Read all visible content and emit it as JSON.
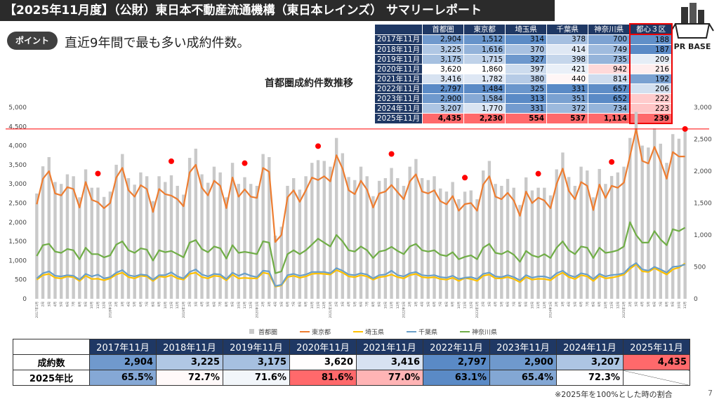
{
  "header": {
    "title": "【2025年11月度】（公財）東日本不動産流通機構（東日本レインズ） サマリーレポート",
    "logo": "PR BASE",
    "point_label": "ポイント",
    "point_text": "直近9年間で最も多い成約件数。"
  },
  "summary_table": {
    "columns": [
      "首都圏",
      "東京都",
      "埼玉県",
      "千葉県",
      "神奈川県",
      "都心３区"
    ],
    "rows": [
      {
        "label": "2017年11月",
        "cells": [
          "2,904",
          "1,512",
          "314",
          "378",
          "700",
          "188"
        ]
      },
      {
        "label": "2018年11月",
        "cells": [
          "3,225",
          "1,616",
          "370",
          "414",
          "749",
          "187"
        ]
      },
      {
        "label": "2019年11月",
        "cells": [
          "3,175",
          "1,715",
          "327",
          "398",
          "735",
          "209"
        ]
      },
      {
        "label": "2020年11月",
        "cells": [
          "3,620",
          "1,860",
          "397",
          "421",
          "942",
          "216"
        ]
      },
      {
        "label": "2021年11月",
        "cells": [
          "3,416",
          "1,782",
          "380",
          "440",
          "814",
          "192"
        ]
      },
      {
        "label": "2022年11月",
        "cells": [
          "2,797",
          "1,484",
          "325",
          "331",
          "657",
          "206"
        ]
      },
      {
        "label": "2023年11月",
        "cells": [
          "2,900",
          "1,584",
          "313",
          "351",
          "652",
          "222"
        ]
      },
      {
        "label": "2024年11月",
        "cells": [
          "3,207",
          "1,770",
          "331",
          "372",
          "734",
          "223"
        ]
      },
      {
        "label": "2025年11月",
        "cells": [
          "4,435",
          "2,230",
          "554",
          "537",
          "1,114",
          "239"
        ]
      }
    ]
  },
  "chart_data": {
    "type": "combo",
    "title": "首都圏成約件数推移",
    "legend": "bottom",
    "highlight_color": "#ff0000",
    "grid": false,
    "categories": [
      "2017年1月",
      "2月",
      "3月",
      "4月",
      "5月",
      "6月",
      "7月",
      "8月",
      "9月",
      "10月",
      "11月",
      "12月",
      "2018年1月",
      "2月",
      "3月",
      "4月",
      "5月",
      "6月",
      "7月",
      "8月",
      "9月",
      "10月",
      "11月",
      "12月",
      "2019年1月",
      "2月",
      "3月",
      "4月",
      "5月",
      "6月",
      "7月",
      "8月",
      "9月",
      "10月",
      "11月",
      "12月",
      "2020年1月",
      "2月",
      "3月",
      "4月",
      "5月",
      "6月",
      "7月",
      "8月",
      "9月",
      "10月",
      "11月",
      "12月",
      "2021年1月",
      "2月",
      "3月",
      "4月",
      "5月",
      "6月",
      "7月",
      "8月",
      "9月",
      "10月",
      "11月",
      "12月",
      "2022年1月",
      "2月",
      "3月",
      "4月",
      "5月",
      "6月",
      "7月",
      "8月",
      "9月",
      "10月",
      "11月",
      "12月",
      "2023年1月",
      "2月",
      "3月",
      "4月",
      "5月",
      "6月",
      "7月",
      "8月",
      "9月",
      "10月",
      "11月",
      "12月",
      "2024年1月",
      "2月",
      "3月",
      "4月",
      "5月",
      "6月",
      "7月",
      "8月",
      "9月",
      "10月",
      "11月",
      "12月",
      "2025年1月",
      "2月",
      "3月",
      "4月",
      "5月",
      "6月",
      "7月",
      "8月",
      "9月",
      "10月",
      "11月"
    ],
    "series": [
      {
        "name": "首都圏",
        "type": "bar",
        "color": "#c9c9c9",
        "values": [
          2750,
          3460,
          3700,
          3050,
          3000,
          3250,
          3200,
          2650,
          3380,
          2900,
          2904,
          2660,
          2800,
          3500,
          3780,
          3150,
          2980,
          3300,
          3200,
          2550,
          3200,
          3050,
          3225,
          2950,
          2720,
          3680,
          3920,
          3250,
          3030,
          3450,
          3300,
          2650,
          3550,
          3000,
          3175,
          3000,
          2950,
          3780,
          3700,
          1650,
          1880,
          2950,
          3150,
          2850,
          3200,
          3550,
          3620,
          3600,
          3450,
          4200,
          3800,
          3180,
          3100,
          3450,
          3200,
          2680,
          3080,
          3150,
          3416,
          3150,
          2950,
          3450,
          3650,
          3150,
          3100,
          3200,
          2880,
          2800,
          3050,
          2600,
          2797,
          2830,
          2600,
          3350,
          3600,
          3000,
          2950,
          3130,
          2900,
          2450,
          3170,
          2830,
          2900,
          2900,
          2700,
          3380,
          3820,
          3180,
          2950,
          3450,
          3350,
          2650,
          3390,
          3000,
          3207,
          3300,
          3450,
          4200,
          4880,
          4000,
          3950,
          4450,
          4050,
          3550,
          4300,
          4180,
          4435
        ]
      },
      {
        "name": "東京都",
        "type": "line",
        "axis": "y2",
        "color": "#ed7d31",
        "values": [
          1480,
          1880,
          2000,
          1650,
          1620,
          1750,
          1720,
          1430,
          1830,
          1550,
          1512,
          1420,
          1500,
          1900,
          2050,
          1700,
          1600,
          1780,
          1720,
          1360,
          1720,
          1640,
          1616,
          1560,
          1450,
          1980,
          2100,
          1740,
          1620,
          1850,
          1770,
          1420,
          1900,
          1600,
          1715,
          1600,
          1580,
          2050,
          1990,
          890,
          1000,
          1590,
          1700,
          1520,
          1700,
          1900,
          1860,
          1920,
          1840,
          2250,
          2040,
          1700,
          1640,
          1850,
          1710,
          1430,
          1650,
          1680,
          1782,
          1670,
          1560,
          1840,
          1950,
          1680,
          1650,
          1700,
          1530,
          1480,
          1610,
          1380,
          1484,
          1500,
          1380,
          1790,
          1920,
          1600,
          1560,
          1660,
          1540,
          1300,
          1680,
          1500,
          1584,
          1540,
          1420,
          1800,
          2040,
          1690,
          1560,
          1830,
          1770,
          1390,
          1790,
          1580,
          1770,
          1740,
          1820,
          2240,
          2660,
          2160,
          2120,
          2380,
          2150,
          1880,
          2300,
          2230,
          2230
        ]
      },
      {
        "name": "埼玉県",
        "type": "line",
        "axis": "y2",
        "color": "#ffc000",
        "values": [
          300,
          370,
          390,
          330,
          320,
          350,
          340,
          280,
          360,
          310,
          314,
          290,
          320,
          380,
          410,
          340,
          320,
          360,
          350,
          280,
          350,
          340,
          370,
          320,
          300,
          390,
          410,
          340,
          320,
          360,
          350,
          290,
          380,
          320,
          327,
          320,
          320,
          410,
          390,
          190,
          210,
          340,
          360,
          330,
          350,
          390,
          397,
          390,
          380,
          450,
          410,
          350,
          340,
          370,
          350,
          300,
          340,
          350,
          380,
          340,
          320,
          370,
          390,
          340,
          330,
          340,
          310,
          300,
          330,
          280,
          325,
          310,
          280,
          360,
          380,
          320,
          320,
          340,
          310,
          260,
          340,
          300,
          313,
          310,
          290,
          360,
          410,
          340,
          310,
          370,
          350,
          280,
          360,
          320,
          331,
          350,
          380,
          470,
          540,
          430,
          420,
          480,
          430,
          380,
          460,
          490,
          554
        ]
      },
      {
        "name": "千葉県",
        "type": "line",
        "axis": "y2",
        "color": "#6a9fc8",
        "values": [
          320,
          400,
          430,
          360,
          350,
          370,
          360,
          300,
          390,
          350,
          378,
          320,
          340,
          410,
          450,
          370,
          350,
          380,
          370,
          300,
          370,
          370,
          414,
          350,
          320,
          420,
          460,
          380,
          350,
          390,
          380,
          310,
          410,
          360,
          398,
          360,
          340,
          440,
          430,
          200,
          220,
          370,
          390,
          360,
          380,
          420,
          421,
          420,
          400,
          480,
          440,
          380,
          370,
          400,
          380,
          320,
          370,
          380,
          440,
          370,
          350,
          400,
          420,
          370,
          360,
          370,
          340,
          330,
          360,
          310,
          331,
          340,
          310,
          390,
          410,
          350,
          340,
          370,
          340,
          290,
          370,
          330,
          351,
          350,
          320,
          400,
          440,
          370,
          340,
          400,
          380,
          310,
          390,
          350,
          372,
          380,
          400,
          500,
          560,
          460,
          440,
          500,
          460,
          410,
          500,
          510,
          537
        ]
      },
      {
        "name": "神奈川県",
        "type": "line",
        "axis": "y2",
        "color": "#70ad47",
        "values": [
          670,
          840,
          860,
          740,
          720,
          780,
          760,
          620,
          800,
          700,
          700,
          650,
          680,
          850,
          900,
          760,
          720,
          790,
          770,
          600,
          760,
          730,
          749,
          700,
          650,
          880,
          920,
          780,
          730,
          820,
          790,
          630,
          840,
          720,
          735,
          720,
          700,
          900,
          880,
          400,
          430,
          700,
          760,
          700,
          760,
          850,
          942,
          880,
          820,
          1000,
          900,
          760,
          740,
          820,
          760,
          640,
          740,
          760,
          814,
          750,
          700,
          820,
          860,
          760,
          740,
          760,
          690,
          670,
          730,
          620,
          657,
          680,
          620,
          800,
          860,
          720,
          700,
          750,
          690,
          580,
          750,
          680,
          652,
          700,
          640,
          800,
          900,
          760,
          700,
          820,
          800,
          640,
          800,
          720,
          734,
          760,
          820,
          1200,
          1000,
          880,
          880,
          1060,
          930,
          840,
          1090,
          1060,
          1114
        ]
      }
    ],
    "ylim": [
      0,
      5000
    ],
    "yticks": [
      0,
      500,
      {
        "value": 1000,
        "label": "1,000"
      },
      {
        "value": 1500,
        "label": "1,500"
      },
      {
        "value": 2000,
        "label": "2,000"
      },
      {
        "value": 2500,
        "label": "2,500"
      },
      {
        "value": 3000,
        "label": "3,000"
      },
      {
        "value": 3500,
        "label": "3,500"
      },
      {
        "value": 4000,
        "label": "4,000"
      },
      {
        "value": 4500,
        "label": "4,500"
      },
      {
        "value": 5000,
        "label": "5,000"
      }
    ],
    "y2lim": [
      0,
      3000
    ],
    "y2ticks": [
      0,
      500,
      {
        "value": 1000,
        "label": "1,000"
      },
      {
        "value": 1500,
        "label": "1,500"
      },
      {
        "value": 2000,
        "label": "2,000"
      },
      {
        "value": 2500,
        "label": "2,500"
      },
      {
        "value": 3000,
        "label": "3,000"
      }
    ]
  },
  "bottom_table": {
    "columns": [
      "2017年11月",
      "2018年11月",
      "2019年11月",
      "2020年11月",
      "2021年11月",
      "2022年11月",
      "2023年11月",
      "2024年11月",
      "2025年11月"
    ],
    "rows": [
      {
        "label": "成約数",
        "cells": [
          "2,904",
          "3,225",
          "3,175",
          "3,620",
          "3,416",
          "2,797",
          "2,900",
          "3,207",
          "4,435"
        ]
      },
      {
        "label": "2025年比",
        "cells": [
          "65.5%",
          "72.7%",
          "71.6%",
          "81.6%",
          "77.0%",
          "63.1%",
          "65.4%",
          "72.3%"
        ]
      }
    ]
  },
  "footnote": "※2025年を100%とした時の割合",
  "page_number": "7"
}
